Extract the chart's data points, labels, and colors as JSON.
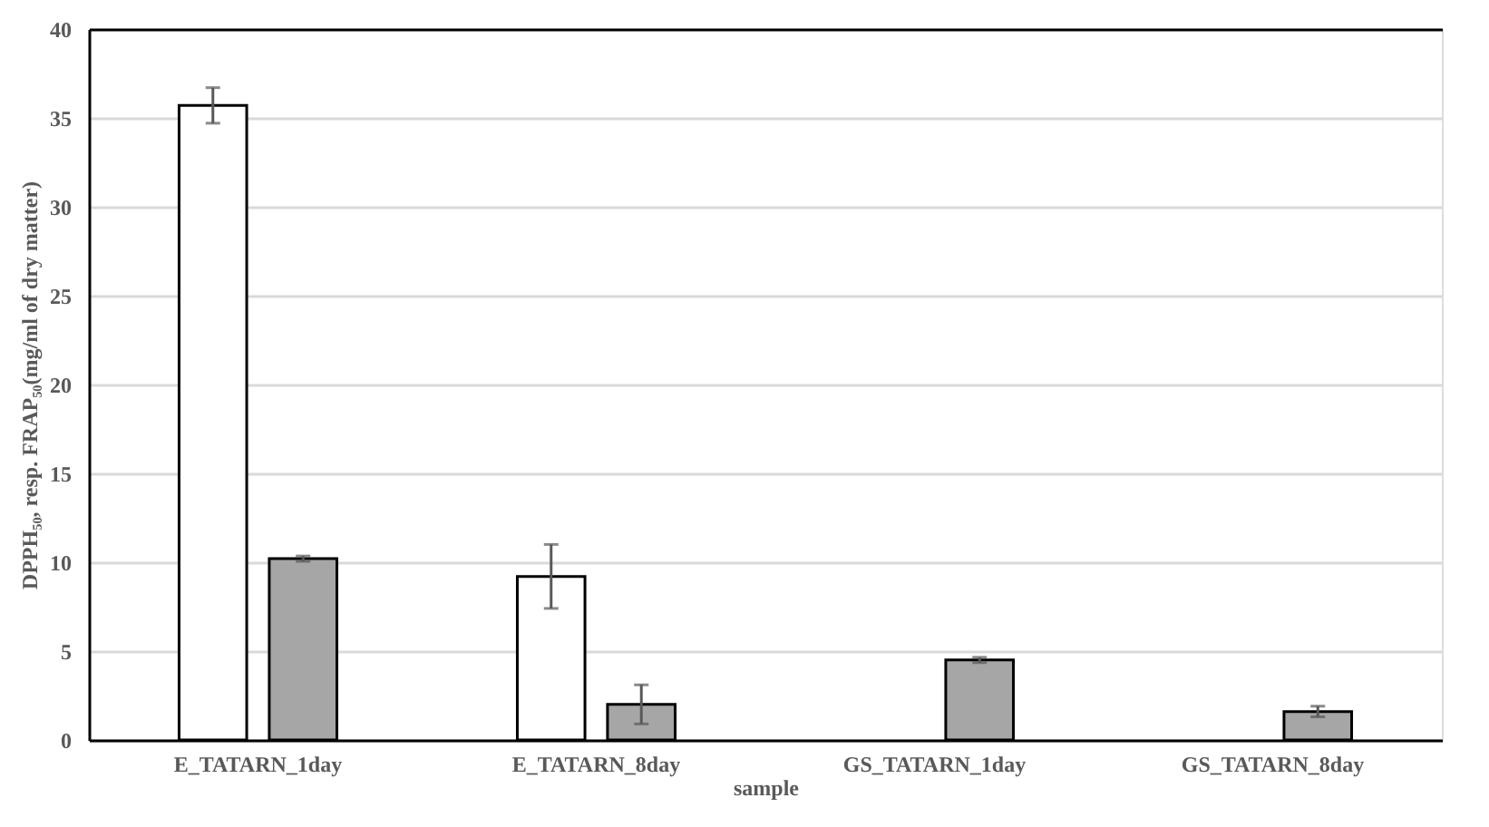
{
  "chart_data": {
    "type": "bar",
    "categories": [
      "E_TATARN_1day",
      "E_TATARN_8day",
      "GS_TATARN_1day",
      "GS_TATARN_8day"
    ],
    "xlabel": "sample",
    "ylabel": "DPPH₅₀, resp. FRAP₅₀(mg/ml of dry matter)",
    "series": [
      {
        "color": "#ffffff",
        "values": [
          35.7,
          9.2,
          null,
          null
        ],
        "errors": [
          1.0,
          1.8,
          null,
          null
        ]
      },
      {
        "color": "#a6a6a6",
        "values": [
          10.2,
          2.0,
          4.5,
          1.6
        ],
        "errors": [
          0.15,
          1.1,
          0.15,
          0.3
        ]
      }
    ],
    "ylim": [
      0,
      40
    ],
    "yticks": [
      0,
      5,
      10,
      15,
      20,
      25,
      30,
      35,
      40
    ],
    "grid": "y"
  }
}
